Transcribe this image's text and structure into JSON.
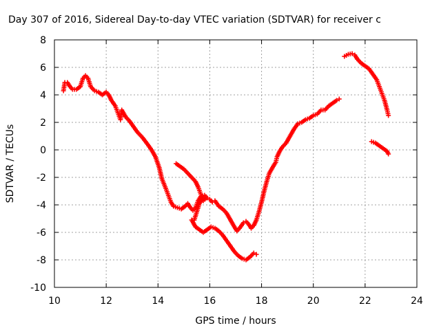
{
  "chart_data": {
    "type": "scatter",
    "title": "Day 307 of 2016, Sidereal Day-to-day VTEC variation (SDTVAR) for receiver c",
    "xlabel": "GPS time / hours",
    "ylabel": "SDTVAR / TECUs",
    "xlim": [
      10,
      24
    ],
    "ylim": [
      -10,
      8
    ],
    "xticks": [
      "10",
      "12",
      "14",
      "16",
      "18",
      "20",
      "22",
      "24"
    ],
    "yticks": [
      "8",
      "6",
      "4",
      "2",
      "0",
      "-2",
      "-4",
      "-6",
      "-8",
      "-10"
    ],
    "grid": true,
    "marker": "plus",
    "color": "#ff0000",
    "series": [
      {
        "segments": [
          [
            [
              10.35,
              4.3
            ],
            [
              10.4,
              4.9
            ],
            [
              10.5,
              4.9
            ],
            [
              10.6,
              4.6
            ],
            [
              10.7,
              4.4
            ],
            [
              10.85,
              4.4
            ],
            [
              11.0,
              4.6
            ],
            [
              11.1,
              5.2
            ],
            [
              11.2,
              5.4
            ],
            [
              11.3,
              5.2
            ],
            [
              11.4,
              4.6
            ],
            [
              11.55,
              4.3
            ],
            [
              11.7,
              4.2
            ],
            [
              11.85,
              4.0
            ],
            [
              12.0,
              4.2
            ],
            [
              12.1,
              4.0
            ],
            [
              12.2,
              3.6
            ],
            [
              12.35,
              3.2
            ],
            [
              12.45,
              2.7
            ],
            [
              12.55,
              2.2
            ],
            [
              12.6,
              2.9
            ],
            [
              12.75,
              2.4
            ],
            [
              12.9,
              2.1
            ],
            [
              13.05,
              1.7
            ],
            [
              13.2,
              1.3
            ],
            [
              13.4,
              0.9
            ],
            [
              13.6,
              0.4
            ],
            [
              13.75,
              0.0
            ],
            [
              13.9,
              -0.5
            ],
            [
              14.05,
              -1.3
            ],
            [
              14.15,
              -2.1
            ],
            [
              14.3,
              -2.8
            ],
            [
              14.4,
              -3.3
            ],
            [
              14.5,
              -3.8
            ],
            [
              14.6,
              -4.1
            ],
            [
              14.75,
              -4.2
            ],
            [
              14.9,
              -4.3
            ],
            [
              15.05,
              -4.1
            ],
            [
              15.15,
              -3.9
            ],
            [
              15.25,
              -4.2
            ],
            [
              15.35,
              -4.4
            ],
            [
              15.45,
              -4.2
            ],
            [
              15.55,
              -3.7
            ],
            [
              15.65,
              -3.4
            ],
            [
              15.8,
              -3.3
            ],
            [
              15.9,
              -3.5
            ],
            [
              16.0,
              -3.6
            ],
            [
              16.1,
              -3.8
            ],
            [
              16.2,
              -3.7
            ],
            [
              16.35,
              -4.1
            ],
            [
              16.5,
              -4.3
            ],
            [
              16.65,
              -4.6
            ],
            [
              16.8,
              -5.1
            ],
            [
              16.95,
              -5.6
            ],
            [
              17.05,
              -5.9
            ],
            [
              17.15,
              -5.7
            ],
            [
              17.3,
              -5.3
            ],
            [
              17.4,
              -5.2
            ],
            [
              17.5,
              -5.4
            ],
            [
              17.6,
              -5.7
            ],
            [
              17.7,
              -5.5
            ],
            [
              17.8,
              -5.1
            ],
            [
              17.9,
              -4.5
            ],
            [
              18.0,
              -3.8
            ],
            [
              18.1,
              -3.0
            ],
            [
              18.2,
              -2.3
            ],
            [
              18.3,
              -1.7
            ],
            [
              18.45,
              -1.2
            ],
            [
              18.55,
              -0.9
            ],
            [
              18.6,
              -0.5
            ],
            [
              18.7,
              -0.1
            ],
            [
              18.8,
              0.2
            ],
            [
              18.95,
              0.5
            ],
            [
              19.1,
              1.0
            ],
            [
              19.25,
              1.5
            ],
            [
              19.4,
              1.9
            ],
            [
              19.55,
              2.0
            ],
            [
              19.7,
              2.2
            ],
            [
              19.85,
              2.3
            ],
            [
              20.0,
              2.5
            ],
            [
              20.15,
              2.6
            ],
            [
              20.3,
              2.9
            ],
            [
              20.45,
              2.9
            ],
            [
              20.6,
              3.2
            ],
            [
              20.75,
              3.4
            ],
            [
              20.9,
              3.6
            ],
            [
              21.0,
              3.7
            ]
          ],
          [
            [
              14.7,
              -1.0
            ],
            [
              14.85,
              -1.2
            ],
            [
              15.0,
              -1.4
            ],
            [
              15.15,
              -1.7
            ],
            [
              15.3,
              -2.0
            ],
            [
              15.45,
              -2.3
            ],
            [
              15.55,
              -2.7
            ],
            [
              15.65,
              -3.2
            ],
            [
              15.75,
              -3.7
            ],
            [
              15.85,
              -3.5
            ],
            [
              15.7,
              -3.6
            ],
            [
              15.6,
              -3.9
            ],
            [
              15.5,
              -4.5
            ],
            [
              15.4,
              -5.1
            ],
            [
              15.3,
              -5.1
            ],
            [
              15.45,
              -5.6
            ],
            [
              15.6,
              -5.8
            ],
            [
              15.75,
              -6.0
            ],
            [
              15.9,
              -5.8
            ],
            [
              16.05,
              -5.6
            ],
            [
              16.2,
              -5.7
            ],
            [
              16.35,
              -5.9
            ],
            [
              16.5,
              -6.2
            ],
            [
              16.65,
              -6.6
            ],
            [
              16.8,
              -7.0
            ],
            [
              16.95,
              -7.4
            ],
            [
              17.1,
              -7.7
            ],
            [
              17.25,
              -7.9
            ],
            [
              17.4,
              -8.0
            ],
            [
              17.55,
              -7.8
            ],
            [
              17.7,
              -7.5
            ],
            [
              17.8,
              -7.6
            ]
          ],
          [
            [
              21.2,
              6.8
            ],
            [
              21.35,
              6.95
            ],
            [
              21.5,
              7.0
            ],
            [
              21.6,
              6.9
            ],
            [
              21.7,
              6.6
            ],
            [
              21.85,
              6.3
            ],
            [
              22.0,
              6.1
            ],
            [
              22.15,
              5.9
            ],
            [
              22.3,
              5.5
            ],
            [
              22.45,
              5.1
            ],
            [
              22.55,
              4.6
            ],
            [
              22.65,
              4.1
            ],
            [
              22.75,
              3.6
            ],
            [
              22.85,
              2.9
            ],
            [
              22.9,
              2.5
            ]
          ],
          [
            [
              22.25,
              0.6
            ],
            [
              22.4,
              0.5
            ],
            [
              22.55,
              0.3
            ],
            [
              22.7,
              0.1
            ],
            [
              22.85,
              -0.1
            ],
            [
              22.9,
              -0.3
            ]
          ]
        ]
      }
    ]
  }
}
